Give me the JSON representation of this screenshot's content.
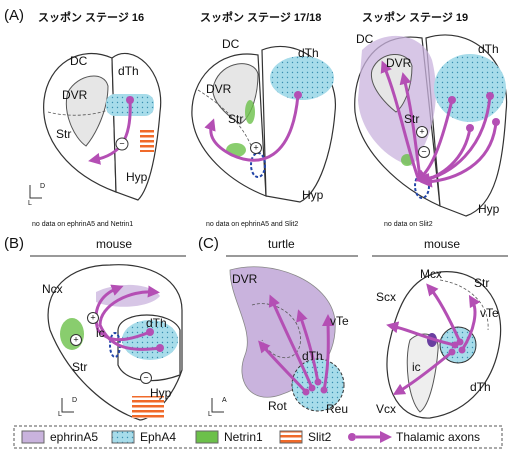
{
  "panel_a": {
    "label": "(A)",
    "stages": [
      {
        "title": "スッポン ステージ 16",
        "labels": [
          "DC",
          "DVR",
          "Str",
          "dTh",
          "Hyp"
        ],
        "signs": [
          "−"
        ],
        "axis": [
          "L",
          "D"
        ],
        "note": "no data on ephrinA5 and Netrin1"
      },
      {
        "title": "スッポン ステージ 17/18",
        "labels": [
          "DC",
          "DVR",
          "Str",
          "dTh",
          "Hyp"
        ],
        "signs": [
          "+"
        ],
        "note": "no data on ephrinA5 and Slit2"
      },
      {
        "title": "スッポン ステージ 19",
        "labels": [
          "DC",
          "DVR",
          "Str",
          "dTh",
          "Hyp"
        ],
        "signs": [
          "+",
          "−"
        ],
        "note": "no data on Slit2"
      }
    ]
  },
  "panel_b": {
    "label": "(B)",
    "title": "mouse",
    "labels": [
      "Ncx",
      "ic",
      "Str",
      "dTh",
      "Hyp"
    ],
    "signs": [
      "+",
      "+",
      "−"
    ],
    "axis": [
      "L",
      "D"
    ]
  },
  "panel_c": {
    "label": "(C)",
    "turtle": {
      "title": "turtle",
      "labels": [
        "DVR",
        "vTe",
        "dTh",
        "Rot",
        "Reu"
      ],
      "axis": [
        "L",
        "A"
      ]
    },
    "mouse": {
      "title": "mouse",
      "labels": [
        "Mcx",
        "Scx",
        "Str",
        "vTe",
        "ic",
        "dTh",
        "Vcx"
      ]
    }
  },
  "legend": [
    "ephrinA5",
    "EphA4",
    "Netrin1",
    "Slit2",
    "Thalamic axons"
  ]
}
